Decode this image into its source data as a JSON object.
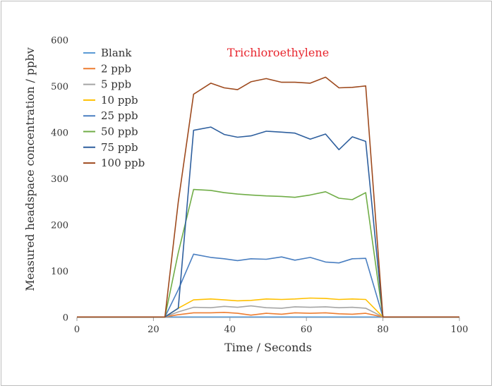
{
  "chart_data": {
    "type": "line",
    "title": "Trichloroethylene",
    "title_color": "#e8262e",
    "xlabel": "Time / Seconds",
    "ylabel": "Measured headspace concentration / ppbv",
    "xlim": [
      0,
      100
    ],
    "ylim": [
      0,
      600
    ],
    "xticks": [
      0,
      20,
      40,
      60,
      80,
      100
    ],
    "yticks": [
      0,
      100,
      200,
      300,
      400,
      500,
      600
    ],
    "grid": false,
    "legend_position": "top-left",
    "x": [
      0,
      23,
      26.5,
      30.5,
      35,
      38.5,
      42,
      45.5,
      49.5,
      53.5,
      57,
      61,
      65,
      68.5,
      72,
      75.5,
      80,
      100
    ],
    "series": [
      {
        "name": "Blank",
        "color": "#5b9bd5",
        "values": [
          1,
          1,
          1,
          1,
          1,
          1,
          1,
          1,
          1,
          1,
          1,
          1,
          1,
          1,
          1,
          1,
          1,
          1
        ]
      },
      {
        "name": "2 ppb",
        "color": "#ed7d31",
        "values": [
          1,
          1,
          6,
          10,
          10,
          11,
          9,
          5,
          9,
          7,
          10,
          9,
          10,
          8,
          7,
          9,
          1,
          1
        ]
      },
      {
        "name": "5 ppb",
        "color": "#a5a5a5",
        "values": [
          1,
          1,
          12,
          22,
          21,
          24,
          22,
          25,
          21,
          20,
          23,
          22,
          23,
          21,
          22,
          20,
          1,
          1
        ]
      },
      {
        "name": "10 ppb",
        "color": "#ffc000",
        "values": [
          1,
          1,
          20,
          38,
          40,
          38,
          36,
          37,
          40,
          39,
          40,
          42,
          41,
          39,
          40,
          39,
          1,
          1
        ]
      },
      {
        "name": "25 ppb",
        "color": "#4a7fc1",
        "values": [
          1,
          1,
          60,
          137,
          130,
          127,
          123,
          127,
          126,
          131,
          124,
          130,
          120,
          118,
          127,
          128,
          1,
          1
        ]
      },
      {
        "name": "50 ppb",
        "color": "#70ad47",
        "values": [
          1,
          1,
          140,
          277,
          275,
          270,
          267,
          265,
          263,
          262,
          260,
          265,
          272,
          258,
          255,
          270,
          1,
          1
        ]
      },
      {
        "name": "75 ppb",
        "color": "#2e5f9e",
        "values": [
          1,
          1,
          20,
          405,
          412,
          396,
          390,
          393,
          403,
          401,
          399,
          386,
          397,
          363,
          391,
          381,
          1,
          1
        ]
      },
      {
        "name": "100 ppb",
        "color": "#9e4a1e",
        "values": [
          1,
          1,
          250,
          483,
          507,
          497,
          493,
          510,
          517,
          509,
          509,
          507,
          520,
          497,
          498,
          501,
          1,
          1
        ]
      }
    ]
  }
}
